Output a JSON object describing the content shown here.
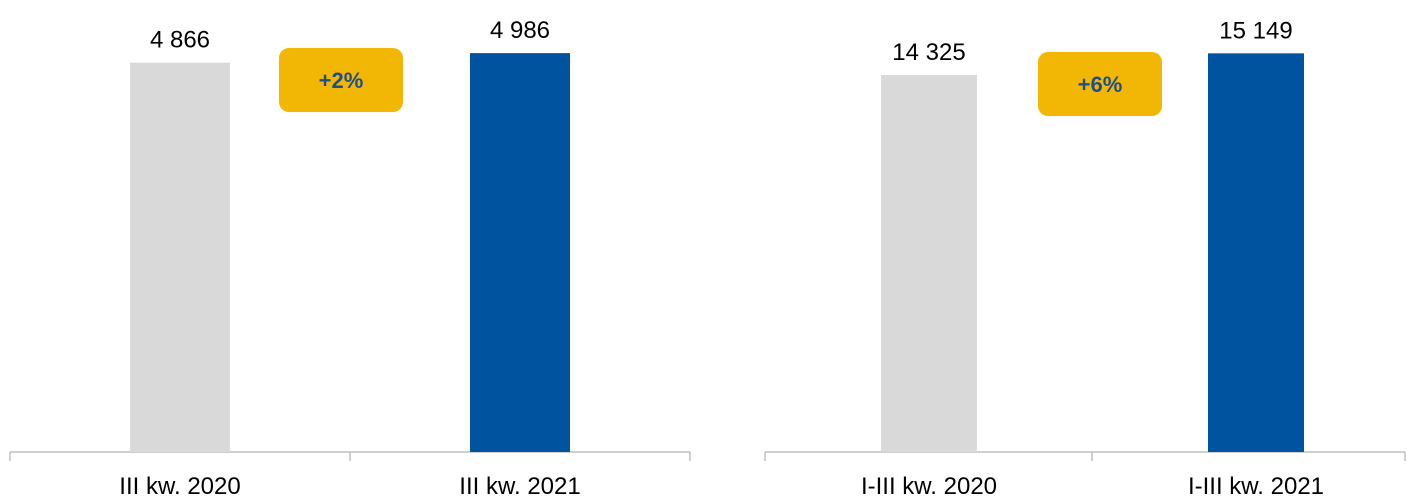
{
  "colors": {
    "previous_bar": "#d9d9d9",
    "current_bar": "#00539f",
    "badge_fill": "#f2b705",
    "badge_text": "#1f4e8c",
    "axis": "#bfbfbf"
  },
  "chart_data": [
    {
      "type": "bar",
      "categories": [
        "III kw. 2020",
        "III kw. 2021"
      ],
      "values": [
        4866,
        4986
      ],
      "value_labels": [
        "4 866",
        "4 986"
      ],
      "change_badge": "+2%",
      "ylim": [
        0,
        5000
      ],
      "grid": false,
      "title": "",
      "xlabel": "",
      "ylabel": ""
    },
    {
      "type": "bar",
      "categories": [
        "I-III kw. 2020",
        "I-III kw. 2021"
      ],
      "values": [
        14325,
        15149
      ],
      "value_labels": [
        "14 325",
        "15 149"
      ],
      "change_badge": "+6%",
      "ylim": [
        0,
        15200
      ],
      "grid": false,
      "title": "",
      "xlabel": "",
      "ylabel": ""
    }
  ]
}
